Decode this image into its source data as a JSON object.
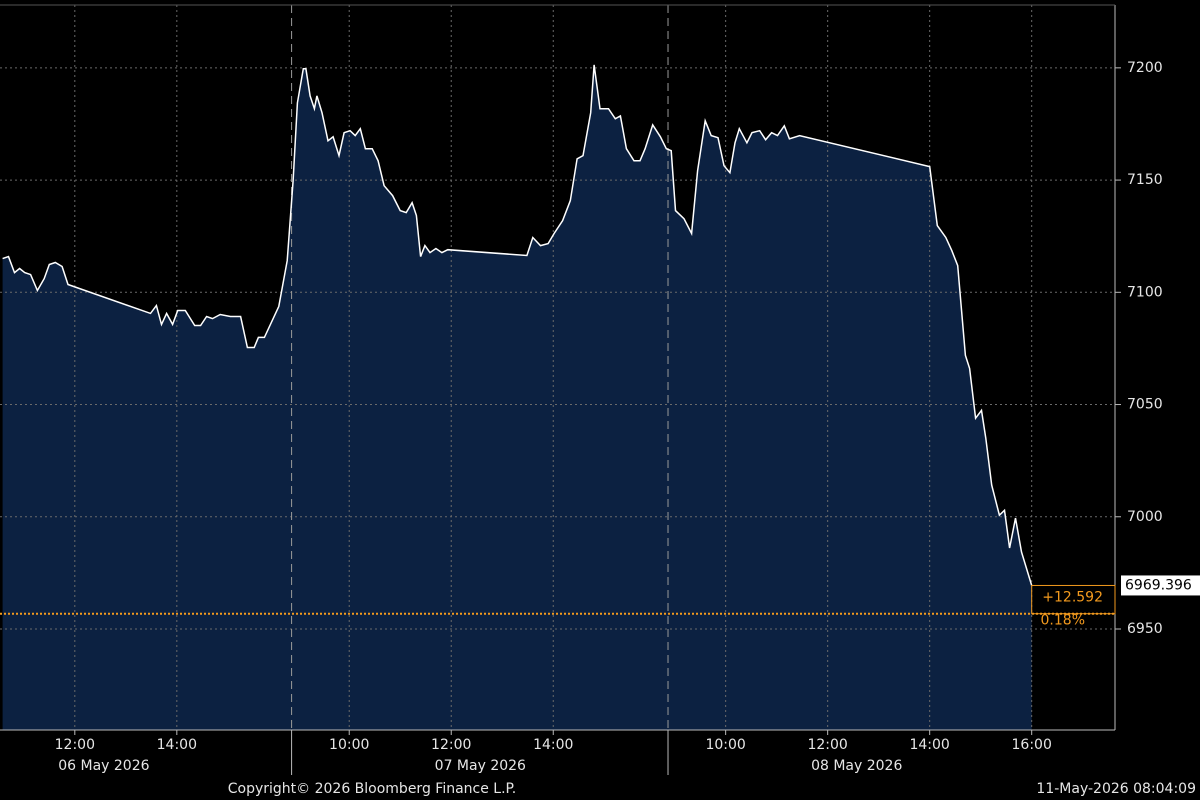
{
  "chart_data": {
    "type": "area",
    "color": "#ffffff",
    "fill": "#0c2141",
    "grid": true,
    "x": [
      "2026-05-06T10:35",
      "2026-05-06T10:42",
      "2026-05-06T10:49",
      "2026-05-06T10:55",
      "2026-05-06T11:01",
      "2026-05-06T11:08",
      "2026-05-06T11:16",
      "2026-05-06T11:24",
      "2026-05-06T11:30",
      "2026-05-06T11:37",
      "2026-05-06T11:45",
      "2026-05-06T11:52",
      "2026-05-06T13:29",
      "2026-05-06T13:36",
      "2026-05-06T13:42",
      "2026-05-06T13:48",
      "2026-05-06T13:55",
      "2026-05-06T14:01",
      "2026-05-06T14:10",
      "2026-05-06T14:21",
      "2026-05-06T14:28",
      "2026-05-06T14:35",
      "2026-05-06T14:42",
      "2026-05-06T14:51",
      "2026-05-06T15:03",
      "2026-05-06T15:15",
      "2026-05-06T15:23",
      "2026-05-06T15:31",
      "2026-05-06T15:36",
      "2026-05-06T15:43",
      "2026-05-06T16:00",
      "2026-05-07T08:47",
      "2026-05-07T08:54",
      "2026-05-07T08:59",
      "2026-05-07T09:06",
      "2026-05-07T09:09",
      "2026-05-07T09:14",
      "2026-05-07T09:19",
      "2026-05-07T09:22",
      "2026-05-07T09:28",
      "2026-05-07T09:35",
      "2026-05-07T09:41",
      "2026-05-07T09:48",
      "2026-05-07T09:54",
      "2026-05-07T10:01",
      "2026-05-07T10:07",
      "2026-05-07T10:13",
      "2026-05-07T10:19",
      "2026-05-07T10:27",
      "2026-05-07T10:34",
      "2026-05-07T10:41",
      "2026-05-07T10:51",
      "2026-05-07T11:00",
      "2026-05-07T11:07",
      "2026-05-07T11:14",
      "2026-05-07T11:19",
      "2026-05-07T11:24",
      "2026-05-07T11:29",
      "2026-05-07T11:35",
      "2026-05-07T11:42",
      "2026-05-07T11:49",
      "2026-05-07T11:56",
      "2026-05-07T13:29",
      "2026-05-07T13:36",
      "2026-05-07T13:45",
      "2026-05-07T13:54",
      "2026-05-07T14:01",
      "2026-05-07T14:11",
      "2026-05-07T14:20",
      "2026-05-07T14:28",
      "2026-05-07T14:35",
      "2026-05-07T14:44",
      "2026-05-07T14:48",
      "2026-05-07T14:55",
      "2026-05-07T15:05",
      "2026-05-07T15:13",
      "2026-05-07T15:19",
      "2026-05-07T15:26",
      "2026-05-07T15:35",
      "2026-05-07T15:42",
      "2026-05-07T15:48",
      "2026-05-07T15:57",
      "2026-05-07T16:06",
      "2026-05-07T16:13",
      "2026-05-08T08:56",
      "2026-05-08T09:01",
      "2026-05-08T09:11",
      "2026-05-08T09:20",
      "2026-05-08T09:27",
      "2026-05-08T09:36",
      "2026-05-08T09:43",
      "2026-05-08T09:51",
      "2026-05-08T09:58",
      "2026-05-08T10:05",
      "2026-05-08T10:11",
      "2026-05-08T10:16",
      "2026-05-08T10:25",
      "2026-05-08T10:31",
      "2026-05-08T10:40",
      "2026-05-08T10:47",
      "2026-05-08T10:54",
      "2026-05-08T11:01",
      "2026-05-08T11:09",
      "2026-05-08T11:15",
      "2026-05-08T11:27",
      "2026-05-08T14:00",
      "2026-05-08T14:09",
      "2026-05-08T14:19",
      "2026-05-08T14:26",
      "2026-05-08T14:33",
      "2026-05-08T14:42",
      "2026-05-08T14:47",
      "2026-05-08T14:54",
      "2026-05-08T15:01",
      "2026-05-08T15:06",
      "2026-05-08T15:13",
      "2026-05-08T15:22",
      "2026-05-08T15:28",
      "2026-05-08T15:34",
      "2026-05-08T15:41",
      "2026-05-08T15:48",
      "2026-05-08T16:00"
    ],
    "values": [
      7115.0,
      7115.9,
      7108.8,
      7110.6,
      7108.8,
      7107.9,
      7100.8,
      7106.1,
      7112.4,
      7113.3,
      7111.5,
      7103.5,
      7090.6,
      7094.1,
      7085.7,
      7090.6,
      7085.7,
      7091.9,
      7091.9,
      7085.2,
      7085.2,
      7089.2,
      7088.3,
      7090.1,
      7089.2,
      7089.2,
      7075.4,
      7075.4,
      7079.9,
      7079.9,
      7093.7,
      7114.1,
      7149.7,
      7184.4,
      7199.6,
      7199.6,
      7187.5,
      7181.8,
      7187.5,
      7180.0,
      7167.5,
      7169.3,
      7160.9,
      7171.1,
      7172.0,
      7169.8,
      7172.9,
      7164.0,
      7164.0,
      7158.6,
      7147.5,
      7143.1,
      7136.4,
      7135.5,
      7139.9,
      7134.2,
      7115.9,
      7120.8,
      7117.7,
      7119.5,
      7117.7,
      7119.0,
      7116.4,
      7124.4,
      7120.8,
      7121.7,
      7126.2,
      7131.9,
      7140.8,
      7159.5,
      7160.9,
      7180.0,
      7201.3,
      7181.8,
      7181.8,
      7177.3,
      7178.6,
      7164.0,
      7158.6,
      7158.6,
      7164.0,
      7174.6,
      7169.3,
      7164.0,
      7163.1,
      7136.4,
      7132.8,
      7126.2,
      7154.2,
      7176.4,
      7169.8,
      7168.9,
      7156.4,
      7153.3,
      7166.6,
      7172.9,
      7166.6,
      7171.1,
      7172.0,
      7168.0,
      7171.1,
      7169.8,
      7174.2,
      7168.4,
      7169.8,
      7156.0,
      7129.7,
      7124.4,
      7118.6,
      7111.9,
      7071.9,
      7066.1,
      7043.9,
      7047.4,
      7035.0,
      7014.1,
      7000.7,
      7002.9,
      6986.1,
      6999.4,
      6984.3,
      6969.396
    ],
    "xlim": [
      "2026-05-06T10:32",
      "2026-05-08T17:38"
    ],
    "xticks": [
      {
        "value": "2026-05-06T12:00",
        "label": "12:00"
      },
      {
        "value": "2026-05-06T14:00",
        "label": "14:00"
      },
      {
        "value": "2026-05-07T10:00",
        "label": "10:00"
      },
      {
        "value": "2026-05-07T12:00",
        "label": "12:00"
      },
      {
        "value": "2026-05-07T14:00",
        "label": "14:00"
      },
      {
        "value": "2026-05-08T10:00",
        "label": "10:00"
      },
      {
        "value": "2026-05-08T12:00",
        "label": "12:00"
      },
      {
        "value": "2026-05-08T14:00",
        "label": "14:00"
      },
      {
        "value": "2026-05-08T16:00",
        "label": "16:00"
      }
    ],
    "xdates": [
      {
        "value": "2026-05-06",
        "label": "06 May 2026"
      },
      {
        "value": "2026-05-07",
        "label": "07 May 2026"
      },
      {
        "value": "2026-05-08",
        "label": "08 May 2026"
      }
    ],
    "ylim": [
      6905,
      7228
    ],
    "yticks": [
      6950,
      7000,
      7050,
      7100,
      7150,
      7200
    ],
    "last_value": 6969.396,
    "change": {
      "value": 12.592,
      "label": "+12.592"
    },
    "change_pct": {
      "value": 0.18,
      "label": "0.18%"
    },
    "reference_line": 6956.804,
    "reference_color": "#f39a1e",
    "copyright": "Copyright© 2026 Bloomberg Finance L.P.",
    "timestamp": "11-May-2026 08:04:09"
  }
}
